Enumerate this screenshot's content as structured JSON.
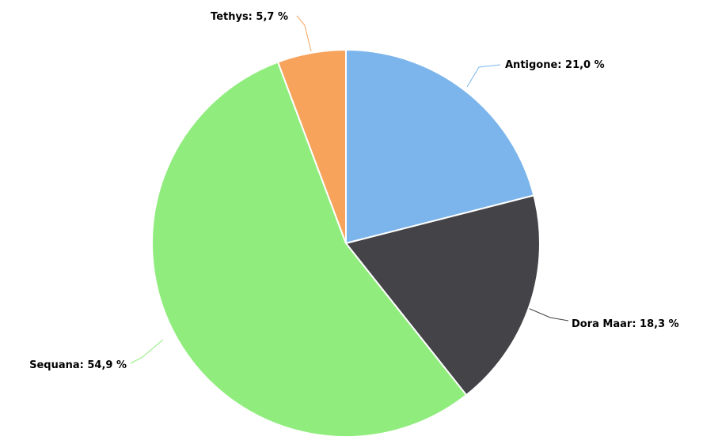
{
  "chart_data": {
    "type": "pie",
    "title": "",
    "legend": "none",
    "label_format": "{name}: {value} %",
    "decimal_separator": ",",
    "slices": [
      {
        "name": "Antigone",
        "value": 21.0,
        "label": "Antigone: 21,0 %",
        "color": "#7cb5ec"
      },
      {
        "name": "Dora Maar",
        "value": 18.3,
        "label": "Dora Maar: 18,3 %",
        "color": "#434348"
      },
      {
        "name": "Sequana",
        "value": 54.9,
        "label": "Sequana: 54,9 %",
        "color": "#90ed7d"
      },
      {
        "name": "Tethys",
        "value": 5.7,
        "label": "Tethys: 5,7 %",
        "color": "#f7a35c"
      }
    ]
  }
}
